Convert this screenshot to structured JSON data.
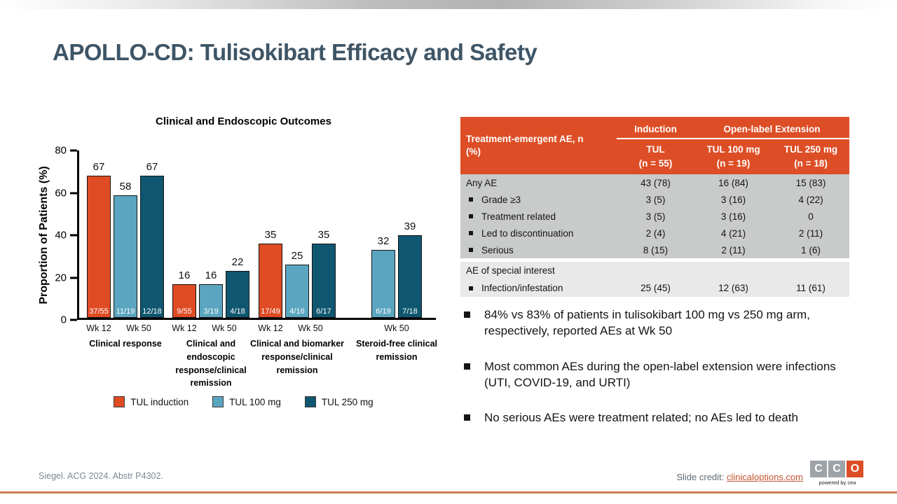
{
  "slide": {
    "title": "APOLLO-CD: Tulisokibart Efficacy and Safety"
  },
  "colors": {
    "title_text": "#3E5566",
    "orange_accent": "#DD4E26",
    "bar_orange": "#DF4B23",
    "bar_light_blue": "#5AA5BF",
    "bar_dark_teal": "#0F5770",
    "table_section_dark": "#C9CACA",
    "table_section_light": "#E9E9EA",
    "logo_gray": "#9EA3A7",
    "bottom_line": "#CC7E58",
    "link": "#C4532F"
  },
  "chart_data": {
    "type": "bar",
    "title": "Clinical and Endoscopic Outcomes",
    "xlabel": "",
    "ylabel": "Proportion of Patients (%)",
    "ylim": [
      0,
      80
    ],
    "yticks": [
      0,
      20,
      40,
      60,
      80
    ],
    "grid": false,
    "legend_position": "bottom",
    "series": [
      {
        "name": "TUL induction",
        "color": "#DF4B23"
      },
      {
        "name": "TUL 100 mg",
        "color": "#5AA5BF"
      },
      {
        "name": "TUL 250 mg",
        "color": "#0F5770"
      }
    ],
    "groups": [
      {
        "label": "Clinical response",
        "bars": [
          {
            "series": "TUL induction",
            "timepoint": "Wk 12",
            "value": 67,
            "fraction": "37/55"
          },
          {
            "series": "TUL 100 mg",
            "timepoint": "Wk 50",
            "value": 58,
            "fraction": "11/19"
          },
          {
            "series": "TUL 250 mg",
            "timepoint": "Wk 50",
            "value": 67,
            "fraction": "12/18"
          }
        ]
      },
      {
        "label": "Clinical and endoscopic response/clinical remission",
        "bars": [
          {
            "series": "TUL induction",
            "timepoint": "Wk 12",
            "value": 16,
            "fraction": "9/55"
          },
          {
            "series": "TUL 100 mg",
            "timepoint": "Wk 50",
            "value": 16,
            "fraction": "3/19"
          },
          {
            "series": "TUL 250 mg",
            "timepoint": "Wk 50",
            "value": 22,
            "fraction": "4/18"
          }
        ]
      },
      {
        "label": "Clinical and biomarker response/clinical remission",
        "bars": [
          {
            "series": "TUL induction",
            "timepoint": "Wk 12",
            "value": 35,
            "fraction": "17/49"
          },
          {
            "series": "TUL 100 mg",
            "timepoint": "Wk 50",
            "value": 25,
            "fraction": "4/16"
          },
          {
            "series": "TUL 250 mg",
            "timepoint": "Wk 50",
            "value": 35,
            "fraction": "6/17"
          }
        ]
      },
      {
        "label": "Steroid-free clinical remission",
        "bars": [
          {
            "series": "TUL 100 mg",
            "timepoint": "Wk 50",
            "value": 32,
            "fraction": "6/19"
          },
          {
            "series": "TUL 250 mg",
            "timepoint": "Wk 50",
            "value": 39,
            "fraction": "7/18"
          }
        ]
      }
    ]
  },
  "ae_table": {
    "row_header": "Treatment-emergent AE, n (%)",
    "group_headers": [
      {
        "label": "Induction"
      },
      {
        "label": "Open-label Extension"
      }
    ],
    "column_headers": [
      {
        "line1": "TUL",
        "line2": "(n = 55)"
      },
      {
        "line1": "TUL 100 mg",
        "line2": "(n = 19)"
      },
      {
        "line1": "TUL 250 mg",
        "line2": "(n = 18)"
      }
    ],
    "sections": [
      {
        "rows": [
          {
            "label": "Any AE",
            "indent": false,
            "values": [
              "43 (78)",
              "16 (84)",
              "15 (83)"
            ]
          },
          {
            "label": "Grade ≥3",
            "indent": true,
            "values": [
              "3 (5)",
              "3 (16)",
              "4 (22)"
            ]
          },
          {
            "label": "Treatment related",
            "indent": true,
            "values": [
              "3 (5)",
              "3 (16)",
              "0"
            ]
          },
          {
            "label": "Led to discontinuation",
            "indent": true,
            "values": [
              "2 (4)",
              "4 (21)",
              "2 (11)"
            ]
          },
          {
            "label": "Serious",
            "indent": true,
            "values": [
              "8 (15)",
              "2 (11)",
              "1 (6)"
            ]
          }
        ]
      },
      {
        "rows": [
          {
            "label": "AE of special interest",
            "indent": false,
            "values": [
              "",
              "",
              ""
            ]
          },
          {
            "label": "Infection/infestation",
            "indent": true,
            "values": [
              "25 (45)",
              "12 (63)",
              "11 (61)"
            ]
          }
        ]
      }
    ]
  },
  "bullets": [
    "84% vs 83% of patients in tulisokibart 100 mg vs 250 mg arm, respectively, reported AEs at Wk 50",
    "Most common AEs during the open-label extension were infections (UTI, COVID-19, and URTI)",
    "No serious AEs were treatment related; no AEs led to death"
  ],
  "footer": {
    "citation": "Siegel. ACG 2024. Abstr P4302.",
    "credit_label": "Slide credit:",
    "credit_link": "clinicaloptions.com",
    "logo_letters": [
      "C",
      "C",
      "O"
    ],
    "logo_tagline": "powered by cea"
  }
}
